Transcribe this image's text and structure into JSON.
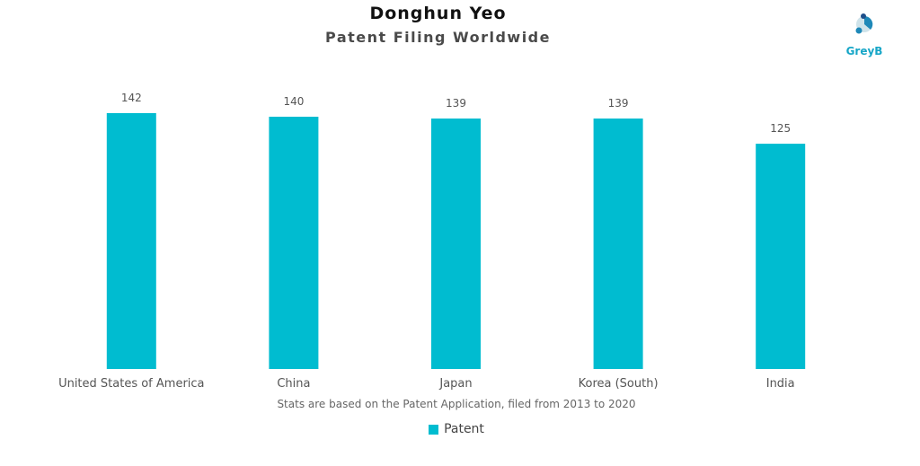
{
  "title": "Donghun Yeo",
  "subtitle": "Patent Filing Worldwide",
  "logo": {
    "text": "GreyB",
    "icon": "greyb-logo-icon"
  },
  "footnote": "Stats are based on the Patent Application, filed from 2013 to 2020",
  "colors": {
    "bar": "#00BCD0",
    "logo": "#17A6C7",
    "label": "#555555"
  },
  "chart_data": {
    "type": "bar",
    "categories": [
      "United States of America",
      "China",
      "Japan",
      "Korea (South)",
      "India"
    ],
    "series": [
      {
        "name": "Patent",
        "values": [
          142,
          140,
          139,
          139,
          125
        ]
      }
    ],
    "title": "Donghun Yeo",
    "subtitle": "Patent Filing Worldwide",
    "xlabel": "",
    "ylabel": "",
    "ylim": [
      0,
      142
    ],
    "grid": false,
    "legend": "bottom-center",
    "data_labels": true
  }
}
